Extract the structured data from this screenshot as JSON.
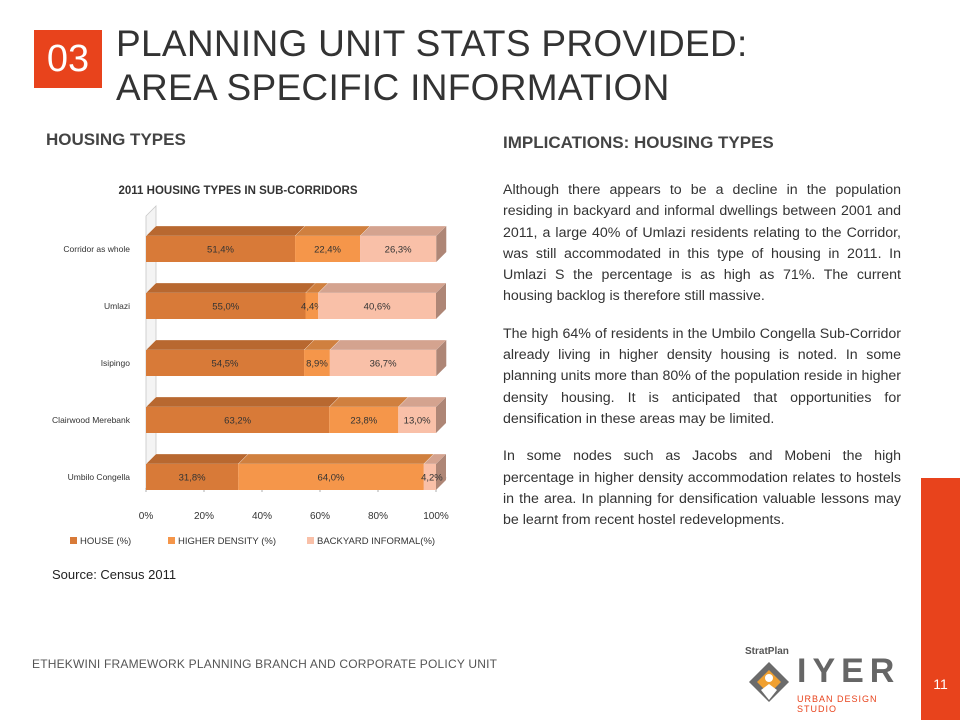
{
  "slide": {
    "section_number": "03",
    "title_line1": "PLANNING UNIT STATS PROVIDED:",
    "title_line2": "AREA SPECIFIC INFORMATION",
    "left_heading": "HOUSING TYPES",
    "source": "Source: Census 2011",
    "right_heading": "IMPLICATIONS:  HOUSING TYPES",
    "paragraphs": [
      "Although there appears to be a decline in the population residing in backyard and informal dwellings between 2001 and 2011, a large 40% of Umlazi residents relating to the Corridor, was still accommodated in this type of housing in 2011. In Umlazi S the percentage is as high as 71%.  The current housing backlog is therefore still massive.",
      "The high 64% of residents in the Umbilo Congella Sub-Corridor already living in higher density housing is noted.  In some planning units more than 80% of the population reside in higher density housing.  It is anticipated that opportunities for densification in these areas may be limited.",
      "In some nodes such as Jacobs and Mobeni the high percentage in higher density accommodation relates to hostels in the area.   In planning for densification valuable lessons may be learnt from recent hostel redevelopments."
    ],
    "footer": "ETHEKWINI FRAMEWORK PLANNING BRANCH AND CORPORATE POLICY UNIT",
    "page_number": "11",
    "logo_stratplan": "StratPlan",
    "logo_wordmark": "IYER",
    "logo_studio": "URBAN DESIGN STUDIO"
  },
  "colors": {
    "accent": "#e8431c",
    "house": "#d87a38",
    "higher_density": "#f5964a",
    "backyard_informal": "#f9c0a8"
  },
  "chart_data": {
    "type": "bar",
    "orientation": "horizontal",
    "stacked": true,
    "percent_stacked": true,
    "style": "3d",
    "title": "2011 HOUSING TYPES IN SUB-CORRIDORS",
    "categories": [
      "Corridor as whole",
      "Umlazi",
      "Isipingo",
      "Clairwood Merebank",
      "Umbilo Congella"
    ],
    "series": [
      {
        "name": "HOUSE (%)",
        "values": [
          51.4,
          55.0,
          54.5,
          63.2,
          31.8
        ],
        "labels": [
          "51,4%",
          "55,0%",
          "54,5%",
          "63,2%",
          "31,8%"
        ]
      },
      {
        "name": "HIGHER DENSITY (%)",
        "values": [
          22.4,
          4.4,
          8.9,
          23.8,
          64.0
        ],
        "labels": [
          "22,4%",
          "4,4%",
          "8,9%",
          "23,8%",
          "64,0%"
        ]
      },
      {
        "name": "BACKYARD INFORMAL(%)",
        "values": [
          26.3,
          40.6,
          36.7,
          13.0,
          4.2
        ],
        "labels": [
          "26,3%",
          "40,6%",
          "36,7%",
          "13,0%",
          "4,2%"
        ]
      }
    ],
    "xlim": [
      0,
      100
    ],
    "x_ticks": [
      "0%",
      "20%",
      "40%",
      "60%",
      "80%",
      "100%"
    ],
    "legend": "bottom",
    "grid": false
  }
}
